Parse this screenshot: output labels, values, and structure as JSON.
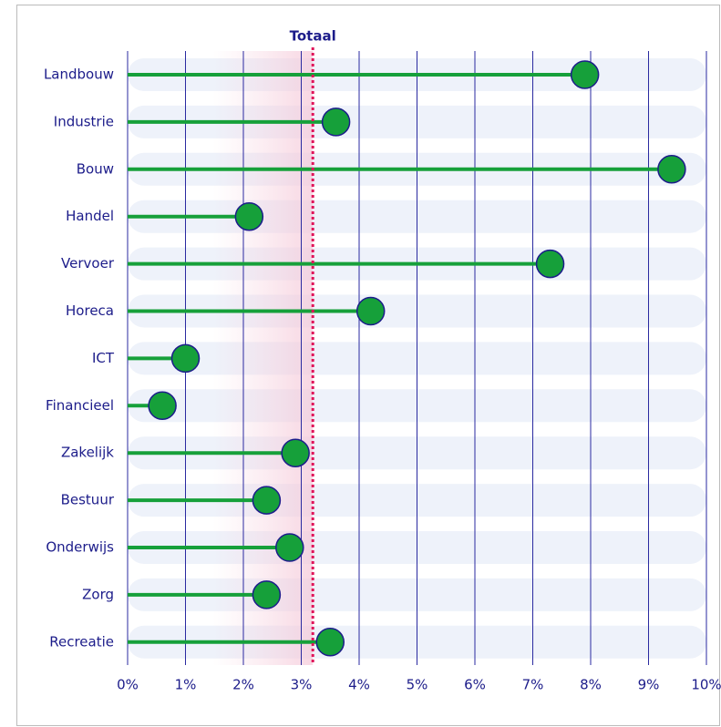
{
  "chart_data": {
    "type": "lollipop",
    "categories": [
      "Landbouw",
      "Industrie",
      "Bouw",
      "Handel",
      "Vervoer",
      "Horeca",
      "ICT",
      "Financieel",
      "Zakelijk",
      "Bestuur",
      "Onderwijs",
      "Zorg",
      "Recreatie"
    ],
    "values": [
      7.9,
      3.6,
      9.4,
      2.1,
      7.3,
      4.2,
      1.0,
      0.6,
      2.9,
      2.4,
      2.8,
      2.4,
      3.5
    ],
    "color": "#16a03a",
    "reference": {
      "value": 3.2,
      "label": "Totaal",
      "color": "#e0155a"
    },
    "xlim": [
      0,
      10
    ],
    "xticks": [
      {
        "value": 0,
        "label": "0%"
      },
      {
        "value": 1,
        "label": "1%"
      },
      {
        "value": 2,
        "label": "2%"
      },
      {
        "value": 3,
        "label": "3%"
      },
      {
        "value": 4,
        "label": "4%"
      },
      {
        "value": 5,
        "label": "5%"
      },
      {
        "value": 6,
        "label": "6%"
      },
      {
        "value": 7,
        "label": "7%"
      },
      {
        "value": 8,
        "label": "8%"
      },
      {
        "value": 9,
        "label": "9%"
      },
      {
        "value": 10,
        "label": "10%"
      }
    ],
    "grid": true
  }
}
